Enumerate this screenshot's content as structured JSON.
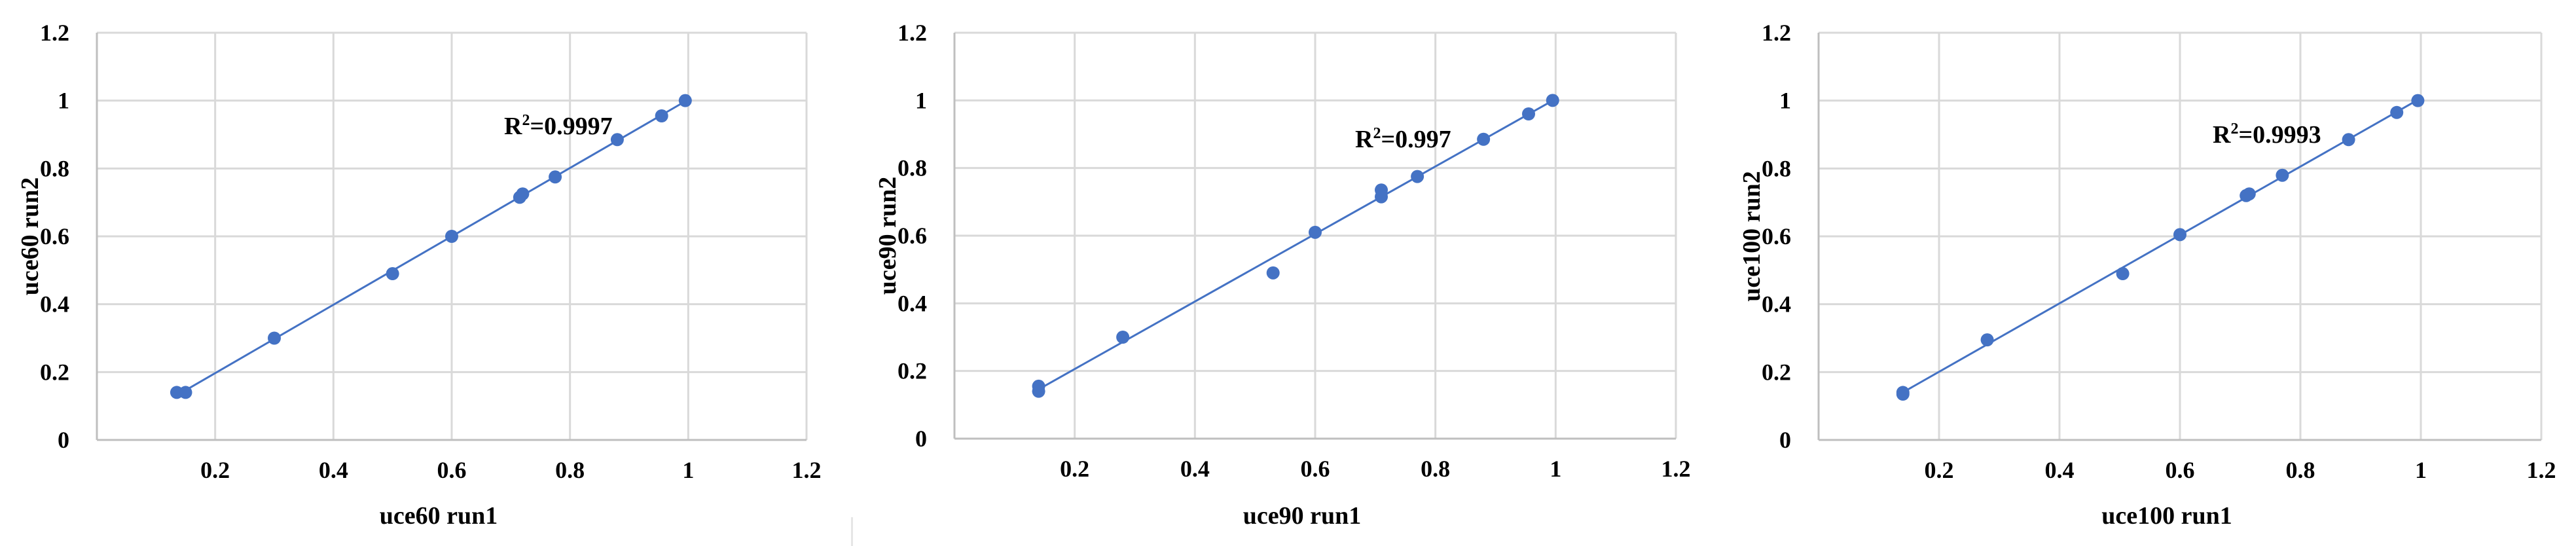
{
  "chart_data": [
    {
      "type": "scatter",
      "xlabel": "uce60 run1",
      "ylabel": "uce60 run2",
      "xlim": [
        0,
        1.2
      ],
      "ylim": [
        0,
        1.2
      ],
      "x_ticks": [
        "0.2",
        "0.4",
        "0.6",
        "0.8",
        "1",
        "1.2"
      ],
      "y_ticks": [
        "0",
        "0.2",
        "0.4",
        "0.6",
        "0.8",
        "1",
        "1.2"
      ],
      "grid": true,
      "trendline": "linear",
      "annotation": {
        "text": "R",
        "sup": "2",
        "value": "=0.9997"
      },
      "series": [
        {
          "x": [
            0.135,
            0.15,
            0.3,
            0.5,
            0.6,
            0.715,
            0.72,
            0.775,
            0.88,
            0.955,
            0.995
          ],
          "y": [
            0.14,
            0.14,
            0.3,
            0.49,
            0.6,
            0.715,
            0.725,
            0.775,
            0.885,
            0.955,
            1.0
          ]
        }
      ]
    },
    {
      "type": "scatter",
      "xlabel": "uce90 run1",
      "ylabel": "uce90 run2",
      "xlim": [
        0,
        1.2
      ],
      "ylim": [
        0,
        1.2
      ],
      "x_ticks": [
        "0.2",
        "0.4",
        "0.6",
        "0.8",
        "1",
        "1.2"
      ],
      "y_ticks": [
        "0",
        "0.2",
        "0.4",
        "0.6",
        "0.8",
        "1",
        "1.2"
      ],
      "grid": true,
      "trendline": "linear",
      "annotation": {
        "text": "R",
        "sup": "2",
        "value": "=0.997"
      },
      "series": [
        {
          "x": [
            0.14,
            0.14,
            0.28,
            0.53,
            0.6,
            0.71,
            0.71,
            0.77,
            0.88,
            0.955,
            0.995
          ],
          "y": [
            0.14,
            0.155,
            0.3,
            0.49,
            0.61,
            0.715,
            0.735,
            0.775,
            0.885,
            0.96,
            1.0
          ]
        }
      ]
    },
    {
      "type": "scatter",
      "xlabel": "uce100 run1",
      "ylabel": "uce100 run2",
      "xlim": [
        0,
        1.2
      ],
      "ylim": [
        0,
        1.2
      ],
      "x_ticks": [
        "0.2",
        "0.4",
        "0.6",
        "0.8",
        "1",
        "1.2"
      ],
      "y_ticks": [
        "0",
        "0.2",
        "0.4",
        "0.6",
        "0.8",
        "1",
        "1.2"
      ],
      "grid": true,
      "trendline": "linear",
      "annotation": {
        "text": "R",
        "sup": "2",
        "value": "=0.9993"
      },
      "series": [
        {
          "x": [
            0.14,
            0.14,
            0.28,
            0.505,
            0.6,
            0.71,
            0.715,
            0.77,
            0.88,
            0.96,
            0.995
          ],
          "y": [
            0.135,
            0.14,
            0.295,
            0.49,
            0.605,
            0.72,
            0.725,
            0.78,
            0.885,
            0.965,
            1.0
          ]
        }
      ]
    }
  ]
}
